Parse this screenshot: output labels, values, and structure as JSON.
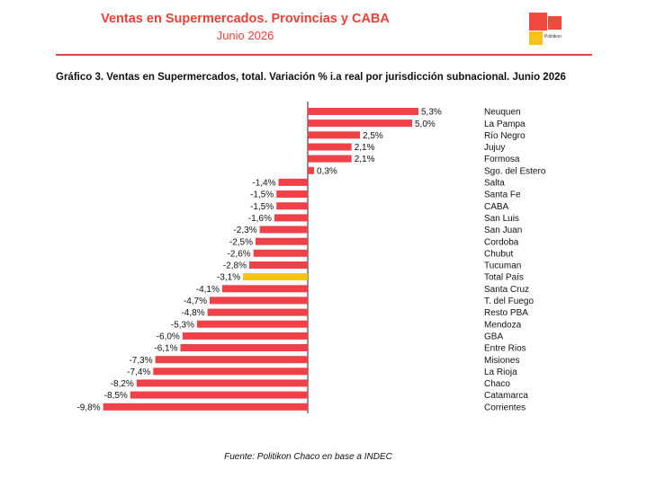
{
  "header": {
    "title": "Ventas en Supermercados. Provincias y CABA",
    "subtitle": "Junio 2026",
    "brand": "Politikon",
    "accent_color": "#e8413a"
  },
  "chart_title": "Gráfico 3. Ventas en Supermercados, total. Variación % i.a real por jurisdicción subnacional. Junio 2026",
  "source": "Fuente: Politikon Chaco en base a INDEC",
  "chart_data": {
    "type": "bar",
    "orientation": "horizontal",
    "categories": [
      "Neuquen",
      "La Pampa",
      "Río Negro",
      "Jujuy",
      "Formosa",
      "Sgo. del Estero",
      "Salta",
      "Santa Fe",
      "CABA",
      "San Luis",
      "San Juan",
      "Cordoba",
      "Chubut",
      "Tucuman",
      "Total País",
      "Santa Cruz",
      "T. del Fuego",
      "Resto PBA",
      "Mendoza",
      "GBA",
      "Entre Rios",
      "Misiones",
      "La Rioja",
      "Chaco",
      "Catamarca",
      "Corrientes"
    ],
    "values": [
      5.3,
      5.0,
      2.5,
      2.1,
      2.1,
      0.3,
      -1.4,
      -1.5,
      -1.5,
      -1.6,
      -2.3,
      -2.5,
      -2.6,
      -2.8,
      -3.1,
      -4.1,
      -4.7,
      -4.8,
      -5.3,
      -6.0,
      -6.1,
      -7.3,
      -7.4,
      -8.2,
      -8.5,
      -9.8
    ],
    "labels": [
      "5,3%",
      "5,0%",
      "2,5%",
      "2,1%",
      "2,1%",
      "0,3%",
      "-1,4%",
      "-1,5%",
      "-1,5%",
      "-1,6%",
      "-2,3%",
      "-2,5%",
      "-2,6%",
      "-2,8%",
      "-3,1%",
      "-4,1%",
      "-4,7%",
      "-4,8%",
      "-5,3%",
      "-6,0%",
      "-6,1%",
      "-7,3%",
      "-7,4%",
      "-8,2%",
      "-8,5%",
      "-9,8%"
    ],
    "bar_color": "#f04048",
    "highlight_category": "Total País",
    "highlight_color": "#f5c215",
    "category_labels_position": "right",
    "xlim": [
      -9.8,
      5.3
    ]
  }
}
